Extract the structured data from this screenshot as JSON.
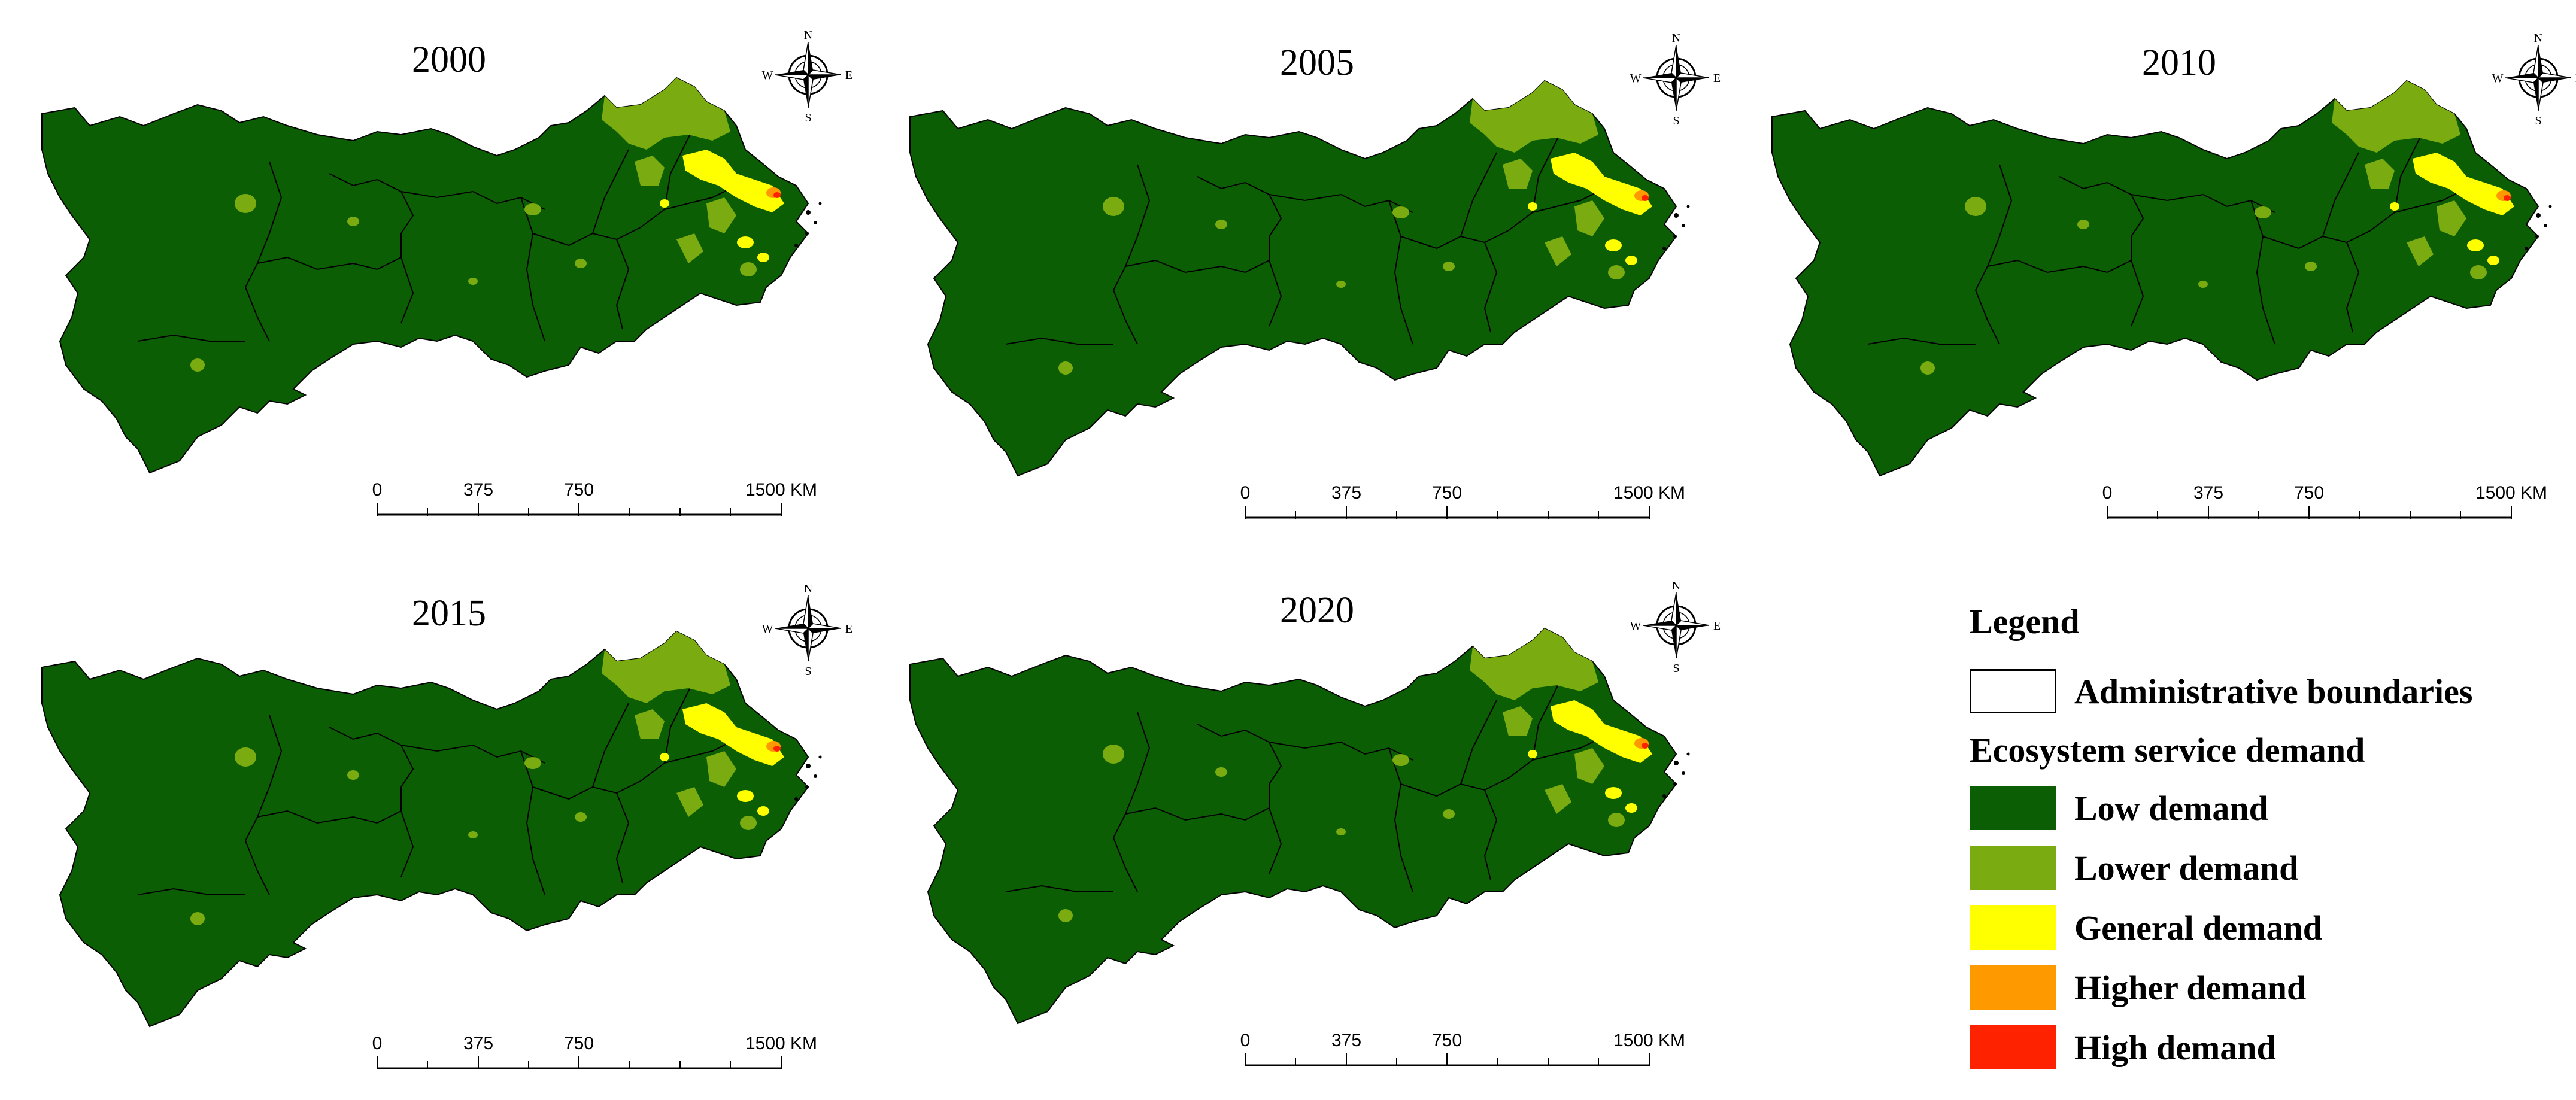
{
  "panels": [
    {
      "year": "2000"
    },
    {
      "year": "2005"
    },
    {
      "year": "2010"
    },
    {
      "year": "2015"
    },
    {
      "year": "2020"
    }
  ],
  "compass": {
    "n": "N",
    "s": "S",
    "e": "E",
    "w": "W"
  },
  "scalebar": {
    "ticks": [
      "0",
      "375",
      "750",
      "1500 KM"
    ]
  },
  "legend": {
    "title": "Legend",
    "boundary_label": "Administrative boundaries",
    "subtitle": "Ecosystem service demand",
    "classes": [
      {
        "label": "Low demand",
        "color": "#0b5e04"
      },
      {
        "label": "Lower demand",
        "color": "#7aab10"
      },
      {
        "label": "General demand",
        "color": "#ffff00"
      },
      {
        "label": "Higher demand",
        "color": "#ff9900"
      },
      {
        "label": "High demand",
        "color": "#ff2200"
      }
    ]
  }
}
